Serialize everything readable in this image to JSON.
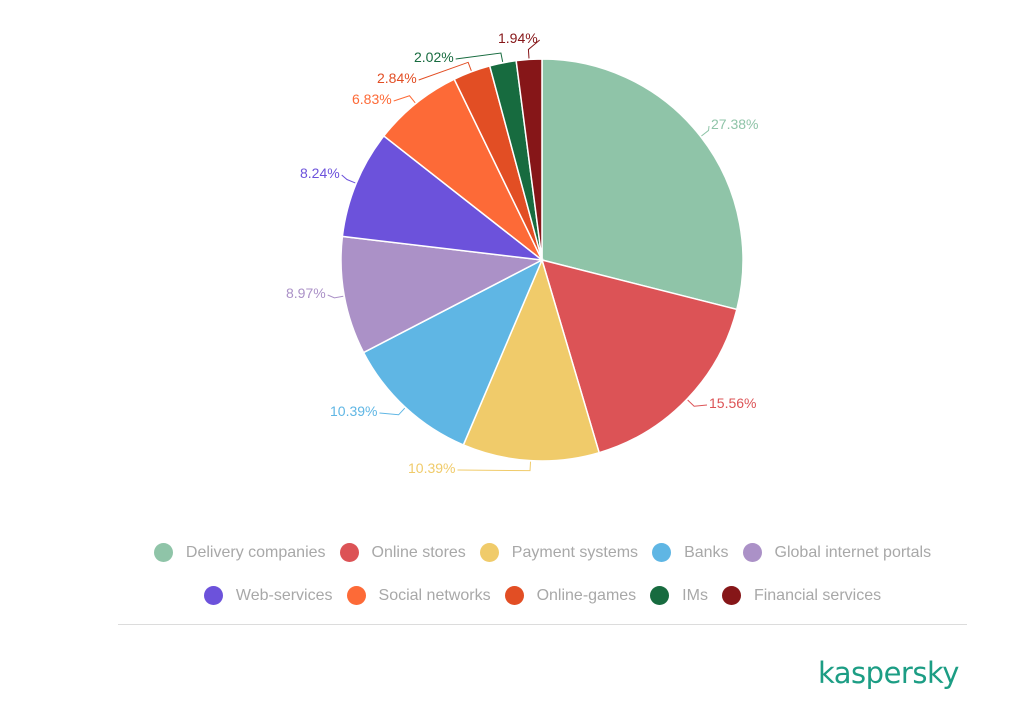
{
  "chart_data": {
    "type": "pie",
    "title": "",
    "start_angle": "12 o'clock",
    "direction": "clockwise",
    "legend_placement": "bottom",
    "slices": [
      {
        "name": "Delivery companies",
        "value": 27.38,
        "label": "27.38%",
        "color": "#8fc4a8"
      },
      {
        "name": "Online stores",
        "value": 15.56,
        "label": "15.56%",
        "color": "#dc5356"
      },
      {
        "name": "Payment systems",
        "value": 10.39,
        "label": "10.39%",
        "color": "#f0cb6a"
      },
      {
        "name": "Banks",
        "value": 10.39,
        "label": "10.39%",
        "color": "#5fb6e4"
      },
      {
        "name": "Global internet portals",
        "value": 8.97,
        "label": "8.97%",
        "color": "#ab91c7"
      },
      {
        "name": "Web-services",
        "value": 8.24,
        "label": "8.24%",
        "color": "#6c52db"
      },
      {
        "name": "Social networks",
        "value": 6.83,
        "label": "6.83%",
        "color": "#fd6a37"
      },
      {
        "name": "Online-games",
        "value": 2.84,
        "label": "2.84%",
        "color": "#e24e24"
      },
      {
        "name": "IMs",
        "value": 2.02,
        "label": "2.02%",
        "color": "#176b3f"
      },
      {
        "name": "Financial services",
        "value": 1.94,
        "label": "1.94%",
        "color": "#861618"
      }
    ]
  },
  "logo": "kaspersky"
}
